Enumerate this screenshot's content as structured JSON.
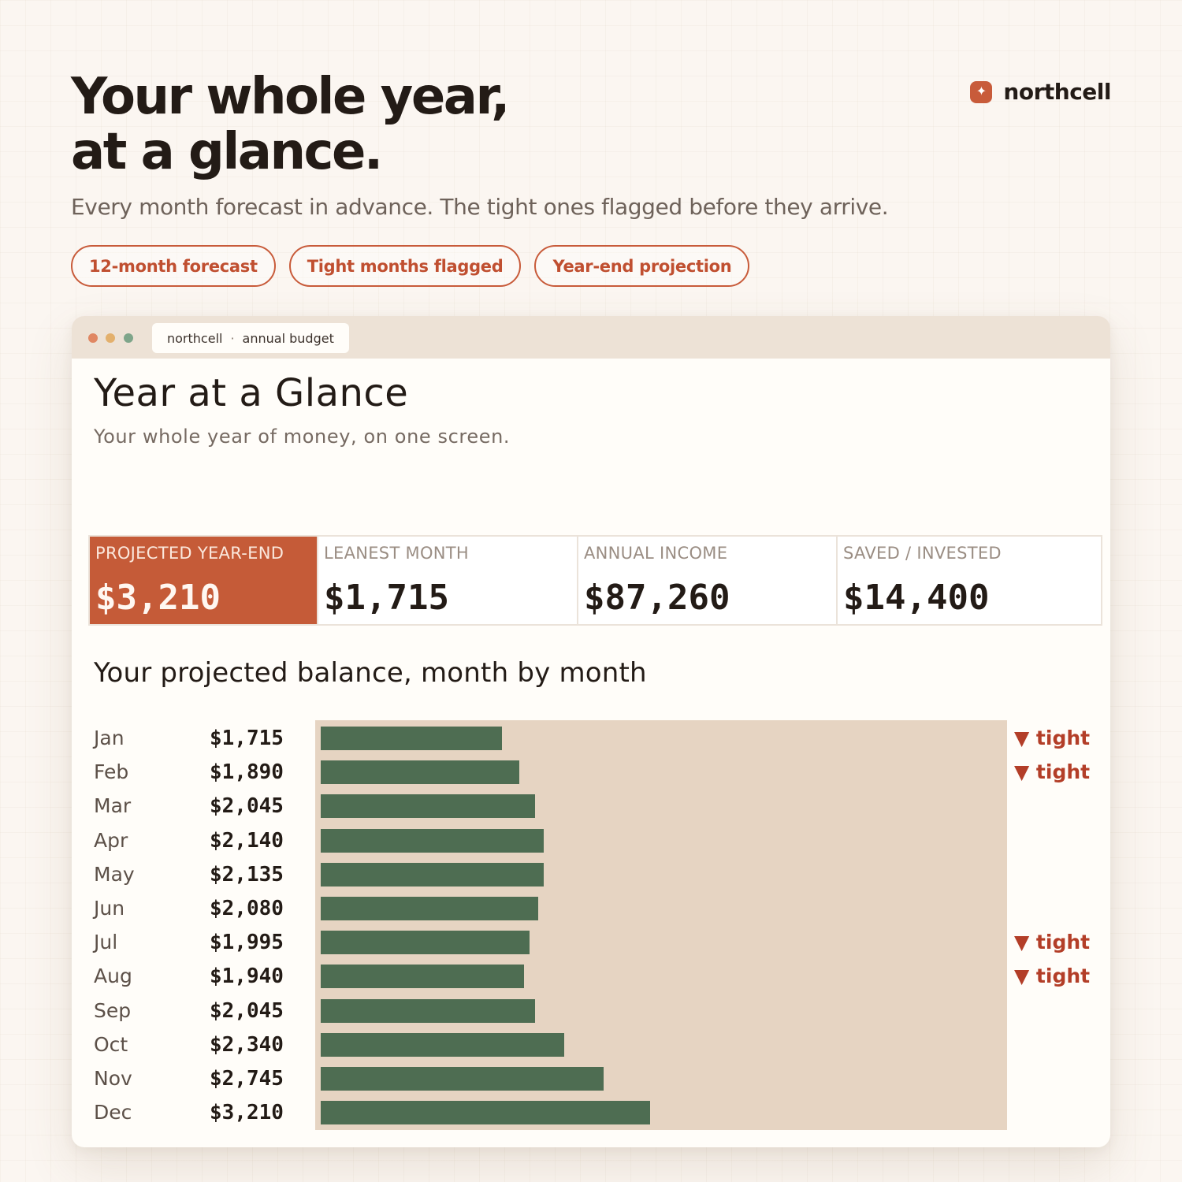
{
  "hero": {
    "title_line1": "Your whole year,",
    "title_line2": "at a glance.",
    "subtitle": "Every month forecast in advance. The tight ones flagged before they arrive."
  },
  "brand": {
    "name": "northcell",
    "icon": "sparkle-icon",
    "color": "#c85b3a"
  },
  "pills": [
    "12-month forecast",
    "Tight months flagged",
    "Year-end projection"
  ],
  "window": {
    "tab": {
      "app": "northcell",
      "separator": "·",
      "page": "annual budget"
    },
    "title": "Year at a Glance",
    "subtitle": "Your whole year of money, on one screen."
  },
  "stats": [
    {
      "label": "PROJECTED YEAR-END",
      "value": "$3,210",
      "highlight": true
    },
    {
      "label": "LEANEST MONTH",
      "value": "$1,715"
    },
    {
      "label": "ANNUAL INCOME",
      "value": "$87,260"
    },
    {
      "label": "SAVED / INVESTED",
      "value": "$14,400"
    }
  ],
  "chart_title": "Your projected balance, month by month",
  "chart_data": {
    "type": "bar",
    "orientation": "horizontal",
    "categories": [
      "Jan",
      "Feb",
      "Mar",
      "Apr",
      "May",
      "Jun",
      "Jul",
      "Aug",
      "Sep",
      "Oct",
      "Nov",
      "Dec"
    ],
    "values": [
      1715,
      1890,
      2045,
      2140,
      2135,
      2080,
      1995,
      1940,
      2045,
      2340,
      2745,
      3210
    ],
    "labels": [
      "$1,715",
      "$1,890",
      "$2,045",
      "$2,140",
      "$2,135",
      "$2,080",
      "$1,995",
      "$1,940",
      "$2,045",
      "$2,340",
      "$2,745",
      "$3,210"
    ],
    "flags": [
      "▼ tight",
      "▼ tight",
      "",
      "",
      "",
      "",
      "▼ tight",
      "▼ tight",
      "",
      "",
      "",
      ""
    ],
    "xlim": [
      0,
      7000
    ],
    "bar_color": "#4e6d52",
    "track_color": "#e6d4c2",
    "flag_color": "#b33e28"
  }
}
